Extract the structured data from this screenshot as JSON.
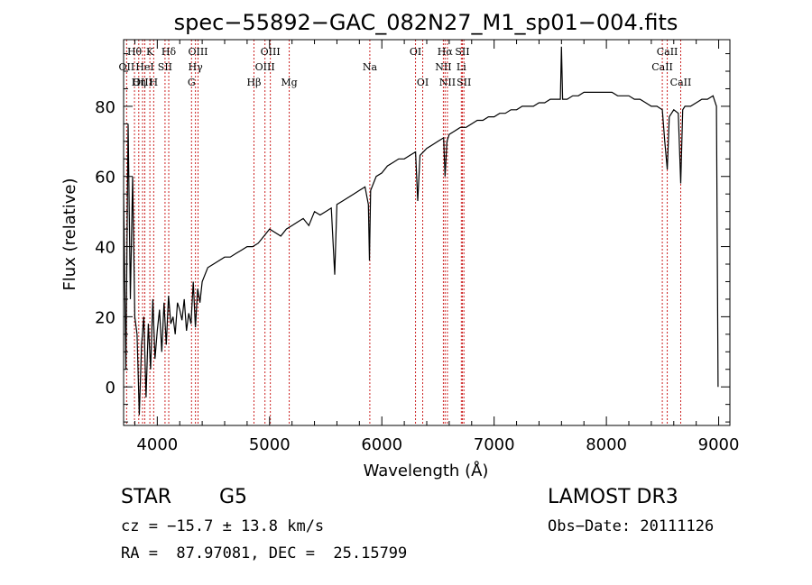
{
  "chart_data": {
    "type": "line",
    "title": "spec−55892−GAC_082N27_M1_sp01−004.fits",
    "xlabel": "Wavelength (Å)",
    "ylabel": "Flux (relative)",
    "xlim": [
      3700,
      9100
    ],
    "ylim": [
      -11,
      99
    ],
    "xticks": [
      4000,
      5000,
      6000,
      7000,
      8000,
      9000
    ],
    "yticks": [
      0,
      20,
      40,
      60,
      80
    ],
    "series": [
      {
        "name": "flux",
        "x": [
          3700,
          3720,
          3740,
          3760,
          3780,
          3800,
          3820,
          3840,
          3860,
          3880,
          3900,
          3920,
          3940,
          3960,
          3980,
          4000,
          4020,
          4040,
          4060,
          4080,
          4100,
          4120,
          4140,
          4160,
          4180,
          4200,
          4220,
          4240,
          4260,
          4280,
          4300,
          4320,
          4340,
          4360,
          4380,
          4400,
          4450,
          4500,
          4550,
          4600,
          4650,
          4700,
          4750,
          4800,
          4850,
          4900,
          4950,
          5000,
          5050,
          5100,
          5150,
          5200,
          5250,
          5300,
          5350,
          5400,
          5450,
          5500,
          5550,
          5580,
          5600,
          5650,
          5700,
          5750,
          5800,
          5850,
          5880,
          5890,
          5900,
          5950,
          6000,
          6050,
          6100,
          6150,
          6200,
          6250,
          6300,
          6320,
          6340,
          6400,
          6450,
          6500,
          6550,
          6563,
          6580,
          6600,
          6650,
          6700,
          6750,
          6800,
          6850,
          6900,
          6950,
          7000,
          7050,
          7100,
          7150,
          7200,
          7250,
          7300,
          7350,
          7400,
          7450,
          7500,
          7550,
          7590,
          7600,
          7610,
          7650,
          7700,
          7750,
          7800,
          7850,
          7900,
          7950,
          8000,
          8050,
          8100,
          8150,
          8200,
          8250,
          8300,
          8350,
          8400,
          8450,
          8498,
          8520,
          8542,
          8560,
          8600,
          8640,
          8662,
          8680,
          8700,
          8750,
          8800,
          8850,
          8900,
          8950,
          8980,
          8995
        ],
        "values": [
          55,
          5,
          75,
          25,
          60,
          20,
          15,
          -8,
          12,
          20,
          -3,
          18,
          5,
          25,
          8,
          16,
          22,
          10,
          24,
          12,
          26,
          18,
          20,
          15,
          24,
          22,
          19,
          25,
          16,
          21,
          18,
          30,
          17,
          28,
          24,
          30,
          34,
          35,
          36,
          37,
          37,
          38,
          39,
          40,
          40,
          41,
          43,
          45,
          44,
          43,
          45,
          46,
          47,
          48,
          46,
          50,
          49,
          50,
          51,
          32,
          52,
          53,
          54,
          55,
          56,
          57,
          52,
          36,
          56,
          60,
          61,
          63,
          64,
          65,
          65,
          66,
          67,
          53,
          66,
          68,
          69,
          70,
          71,
          60,
          70,
          72,
          73,
          74,
          74,
          75,
          76,
          76,
          77,
          77,
          78,
          78,
          79,
          79,
          80,
          80,
          80,
          81,
          81,
          82,
          82,
          82,
          97,
          82,
          82,
          83,
          83,
          84,
          84,
          84,
          84,
          84,
          84,
          83,
          83,
          83,
          82,
          82,
          81,
          80,
          80,
          79,
          70,
          62,
          77,
          79,
          78,
          58,
          79,
          80,
          80,
          81,
          82,
          82,
          83,
          80,
          0
        ]
      }
    ],
    "lines": [
      {
        "label": "Hθ",
        "wl": 3797,
        "row": 0
      },
      {
        "label": "OII",
        "wl": 3727,
        "row": 1
      },
      {
        "label": "OIII",
        "wl": 3869,
        "row": 2
      },
      {
        "label": "Hη",
        "wl": 3835,
        "row": 2
      },
      {
        "label": "HeI",
        "wl": 3889,
        "row": 1
      },
      {
        "label": "K",
        "wl": 3934,
        "row": 0
      },
      {
        "label": "SII",
        "wl": 4069,
        "row": 1
      },
      {
        "label": "H",
        "wl": 3968,
        "row": 2
      },
      {
        "label": "Hδ",
        "wl": 4102,
        "row": 0
      },
      {
        "label": "OIII",
        "wl": 4363,
        "row": 0
      },
      {
        "label": "Hγ",
        "wl": 4340,
        "row": 1
      },
      {
        "label": "G",
        "wl": 4305,
        "row": 2
      },
      {
        "label": "OIII",
        "wl": 5007,
        "row": 0
      },
      {
        "label": "OIII",
        "wl": 4959,
        "row": 1
      },
      {
        "label": "Hβ",
        "wl": 4861,
        "row": 2
      },
      {
        "label": "Mg",
        "wl": 5175,
        "row": 2
      },
      {
        "label": "Na",
        "wl": 5893,
        "row": 1
      },
      {
        "label": "OI",
        "wl": 6300,
        "row": 0
      },
      {
        "label": "OI",
        "wl": 6364,
        "row": 2
      },
      {
        "label": "Hα",
        "wl": 6563,
        "row": 0
      },
      {
        "label": "SII",
        "wl": 6717,
        "row": 0
      },
      {
        "label": "NII",
        "wl": 6548,
        "row": 1
      },
      {
        "label": "Li",
        "wl": 6708,
        "row": 1
      },
      {
        "label": "NII",
        "wl": 6584,
        "row": 2
      },
      {
        "label": "SII",
        "wl": 6731,
        "row": 2
      },
      {
        "label": "CaII",
        "wl": 8542,
        "row": 0
      },
      {
        "label": "CaII",
        "wl": 8498,
        "row": 1
      },
      {
        "label": "CaII",
        "wl": 8662,
        "row": 2
      }
    ]
  },
  "info": {
    "class": "STAR",
    "subclass": "G5",
    "survey": "LAMOST DR3",
    "cz": "cz = −15.7 ± 13.8 km/s",
    "obs_date": "Obs−Date: 20111126",
    "coords": "RA =  87.97081, DEC =  25.15799"
  },
  "colors": {
    "line_markers": "#cc2222",
    "spectrum": "#000000"
  }
}
